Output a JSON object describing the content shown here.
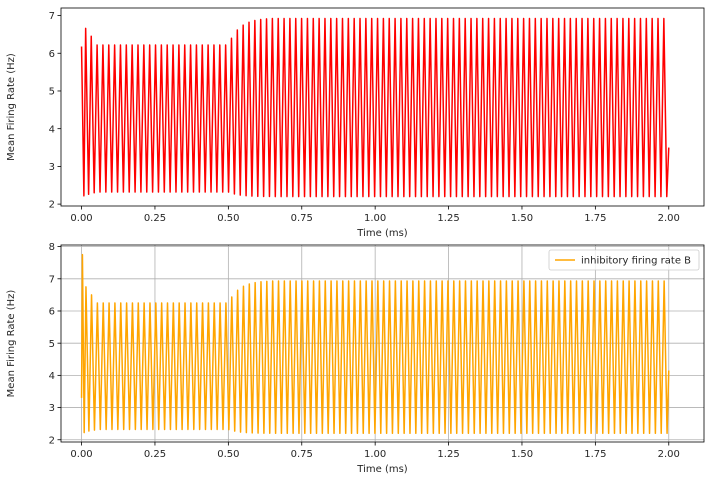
{
  "chart_data": [
    {
      "type": "line",
      "xlabel": "Time (ms)",
      "ylabel": "Mean Firing Rate (Hz)",
      "xlim": [
        -0.07,
        2.12
      ],
      "ylim": [
        1.95,
        7.2
      ],
      "xticks": [
        0.0,
        0.25,
        0.5,
        0.75,
        1.0,
        1.25,
        1.5,
        1.75,
        2.0
      ],
      "xtick_labels": [
        "0.00",
        "0.25",
        "0.50",
        "0.75",
        "1.00",
        "1.25",
        "1.50",
        "1.75",
        "2.00"
      ],
      "yticks": [
        2,
        3,
        4,
        5,
        6,
        7
      ],
      "ytick_labels": [
        "2",
        "3",
        "4",
        "5",
        "6",
        "7"
      ],
      "grid": false,
      "legend": null,
      "series": [
        {
          "color": "#ff0000",
          "x_range": [
            0.0,
            2.0
          ],
          "oscillation_period": 0.0199,
          "phase_transition_x": 0.5,
          "segments": [
            {
              "x": [
                0.0,
                0.5
              ],
              "peak": 6.22,
              "trough": 2.32
            },
            {
              "x": [
                0.5,
                2.0
              ],
              "peak": 6.92,
              "trough": 2.2
            }
          ],
          "initial_points": [
            [
              0.0,
              6.18
            ],
            [
              0.008,
              2.22
            ],
            [
              0.014,
              6.66
            ],
            [
              0.024,
              2.26
            ],
            [
              0.033,
              6.45
            ],
            [
              0.043,
              2.3
            ]
          ],
          "final_value": 3.5
        }
      ]
    },
    {
      "type": "line",
      "xlabel": "Time (ms)",
      "ylabel": "Mean Firing Rate (Hz)",
      "xlim": [
        -0.07,
        2.12
      ],
      "ylim": [
        1.93,
        8.05
      ],
      "xticks": [
        0.0,
        0.25,
        0.5,
        0.75,
        1.0,
        1.25,
        1.5,
        1.75,
        2.0
      ],
      "xtick_labels": [
        "0.00",
        "0.25",
        "0.50",
        "0.75",
        "1.00",
        "1.25",
        "1.50",
        "1.75",
        "2.00"
      ],
      "yticks": [
        2,
        3,
        4,
        5,
        6,
        7,
        8
      ],
      "ytick_labels": [
        "2",
        "3",
        "4",
        "5",
        "6",
        "7",
        "8"
      ],
      "grid": true,
      "legend": {
        "position": "top-right",
        "entries": [
          "inhibitory firing rate B"
        ]
      },
      "series": [
        {
          "name": "inhibitory firing rate B",
          "color": "#ffa500",
          "x_range": [
            0.0,
            2.0
          ],
          "oscillation_period": 0.0199,
          "phase_transition_x": 0.5,
          "segments": [
            {
              "x": [
                0.0,
                0.5
              ],
              "peak": 6.25,
              "trough": 2.32
            },
            {
              "x": [
                0.5,
                2.0
              ],
              "peak": 6.93,
              "trough": 2.2
            }
          ],
          "initial_points": [
            [
              0.0,
              3.3
            ],
            [
              0.003,
              7.75
            ],
            [
              0.009,
              2.22
            ],
            [
              0.015,
              6.75
            ],
            [
              0.025,
              2.27
            ],
            [
              0.034,
              6.5
            ],
            [
              0.044,
              2.3
            ]
          ],
          "final_value": 4.15
        }
      ]
    }
  ]
}
